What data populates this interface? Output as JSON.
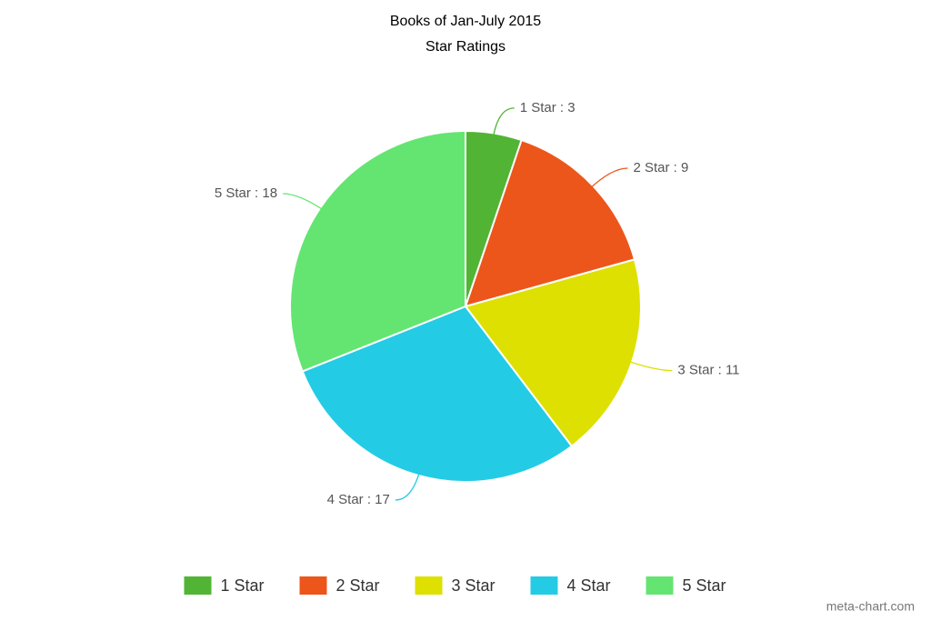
{
  "chart_data": {
    "type": "pie",
    "title": "Books of Jan-July 2015",
    "subtitle": "Star Ratings",
    "categories": [
      "1 Star",
      "2 Star",
      "3 Star",
      "4 Star",
      "5 Star"
    ],
    "values": [
      3,
      9,
      11,
      17,
      18
    ],
    "value_labels": [
      "1 Star : 3",
      "2 Star : 9",
      "3 Star : 11",
      "4 Star : 17",
      "5 Star : 18"
    ],
    "colors": [
      "#52b435",
      "#ec561b",
      "#dde000",
      "#24cbe5",
      "#64e572"
    ],
    "legend": "bottom",
    "credit": "meta-chart.com"
  }
}
